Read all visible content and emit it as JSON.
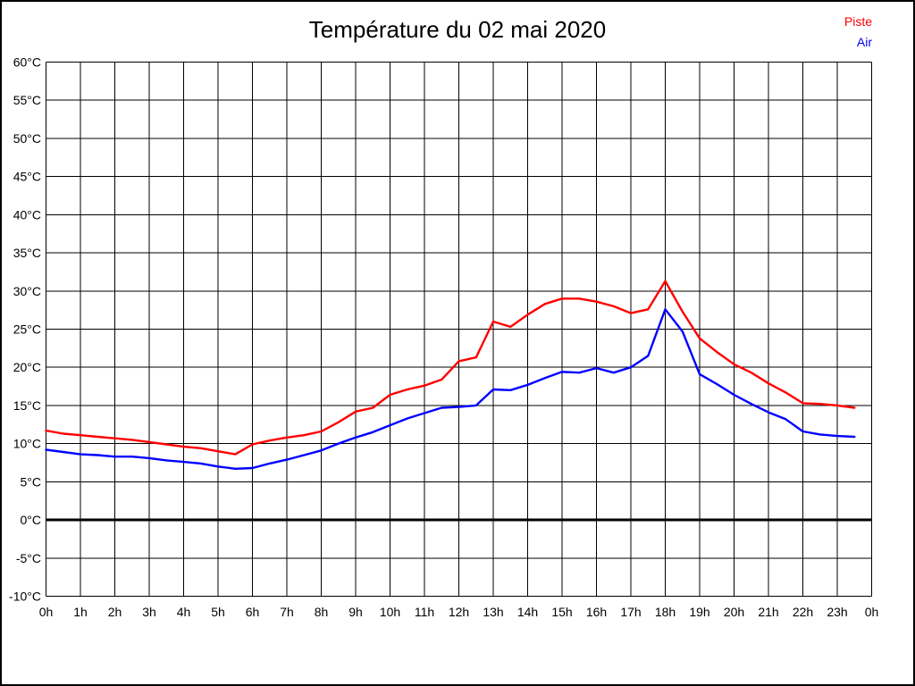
{
  "chart_data": {
    "type": "line",
    "title": "Température du 02 mai 2020",
    "xlabel": "",
    "ylabel": "",
    "xlim": [
      0,
      24
    ],
    "ylim": [
      -10,
      60
    ],
    "grid": true,
    "zero_line_bold": true,
    "legend_position": "top-right",
    "x_tick_labels": [
      "0h",
      "1h",
      "2h",
      "3h",
      "4h",
      "5h",
      "6h",
      "7h",
      "8h",
      "9h",
      "10h",
      "11h",
      "12h",
      "13h",
      "14h",
      "15h",
      "16h",
      "17h",
      "18h",
      "19h",
      "20h",
      "21h",
      "22h",
      "23h",
      "0h"
    ],
    "y_ticks": [
      60,
      55,
      50,
      45,
      40,
      35,
      30,
      25,
      20,
      15,
      10,
      5,
      0,
      -5,
      -10
    ],
    "y_tick_suffix": "°C",
    "x": [
      0,
      0.5,
      1,
      1.5,
      2,
      2.5,
      3,
      3.5,
      4,
      4.5,
      5,
      5.5,
      6,
      6.5,
      7,
      7.5,
      8,
      8.5,
      9,
      9.5,
      10,
      10.5,
      11,
      11.5,
      12,
      12.5,
      13,
      13.5,
      14,
      14.5,
      15,
      15.5,
      16,
      16.5,
      17,
      17.5,
      18,
      18.5,
      19,
      19.5,
      20,
      20.5,
      21,
      21.5,
      22,
      22.5,
      23,
      23.5
    ],
    "series": [
      {
        "name": "Piste",
        "color": "#ff0000",
        "values": [
          11.7,
          11.3,
          11.1,
          10.9,
          10.7,
          10.5,
          10.2,
          9.9,
          9.6,
          9.4,
          9.0,
          8.6,
          9.9,
          10.4,
          10.8,
          11.1,
          11.6,
          12.8,
          14.2,
          14.7,
          16.4,
          17.1,
          17.6,
          18.4,
          20.8,
          21.3,
          26.0,
          25.3,
          26.9,
          28.3,
          29.0,
          29.0,
          28.6,
          28.0,
          27.1,
          27.6,
          31.3,
          27.3,
          23.8,
          22.0,
          20.4,
          19.3,
          17.9,
          16.7,
          15.3,
          15.2,
          15.0,
          14.7
        ]
      },
      {
        "name": "Air",
        "color": "#0000ff",
        "values": [
          9.2,
          8.9,
          8.6,
          8.5,
          8.3,
          8.3,
          8.1,
          7.8,
          7.6,
          7.4,
          7.0,
          6.7,
          6.8,
          7.4,
          7.9,
          8.5,
          9.1,
          10.0,
          10.8,
          11.5,
          12.4,
          13.3,
          14.0,
          14.7,
          14.8,
          15.0,
          17.1,
          17.0,
          17.7,
          18.6,
          19.4,
          19.3,
          19.9,
          19.3,
          20.0,
          21.5,
          27.6,
          24.7,
          19.1,
          17.8,
          16.4,
          15.2,
          14.1,
          13.2,
          11.6,
          11.2,
          11.0,
          10.9
        ]
      }
    ],
    "colors": {
      "grid": "#000000",
      "zero_line": "#000000",
      "background": "#ffffff",
      "border": "#000000"
    }
  }
}
